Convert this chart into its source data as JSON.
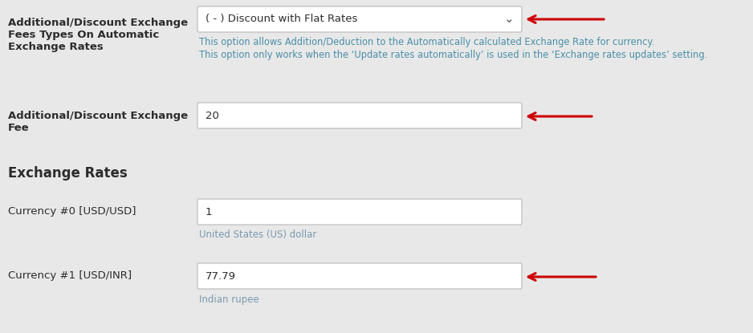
{
  "bg_color": "#e8e8e8",
  "label_color": "#2c2c2c",
  "info_color": "#4a8fa8",
  "box_bg": "#ffffff",
  "box_border": "#b8b8b8",
  "arrow_color": "#cc0000",
  "subtext_color": "#7a9ab0",
  "row1_label_line1": "Additional/Discount Exchange",
  "row1_label_line2": "Fees Types On Automatic",
  "row1_label_line3": "Exchange Rates",
  "row1_dropdown_text": "( - ) Discount with Flat Rates",
  "row1_chevron": "⌄",
  "row1_info1": "This option allows Addition/Deduction to the Automatically calculated Exchange Rate for currency.",
  "row1_info2": "This option only works when the ‘Update rates automatically’ is used in the ‘Exchange rates updates’ setting.",
  "row2_label_line1": "Additional/Discount Exchange",
  "row2_label_line2": "Fee",
  "row2_input_text": "20",
  "section_header": "Exchange Rates",
  "row3_label": "Currency #0 [USD/USD]",
  "row3_input_text": "1",
  "row3_subtext": "United States (US) dollar",
  "row4_label": "Currency #1 [USD/INR]",
  "row4_input_text": "77.79",
  "row4_subtext": "Indian rupee",
  "fig_w": 9.38,
  "fig_h": 4.15,
  "dpi": 100
}
